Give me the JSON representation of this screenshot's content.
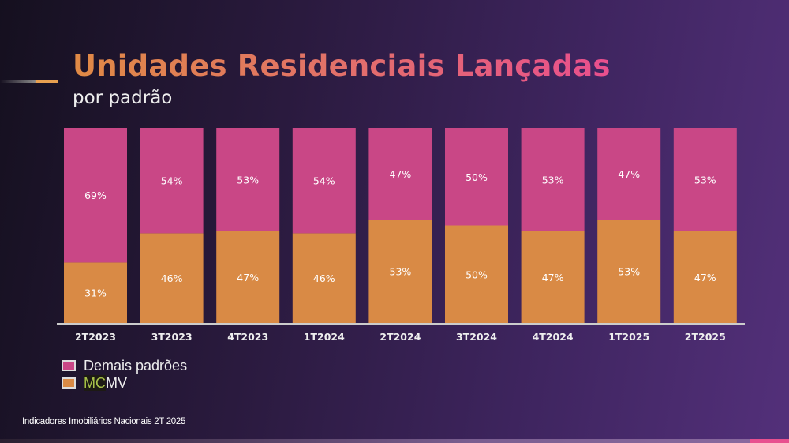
{
  "title": "Unidades Residenciais Lançadas",
  "subtitle": "por padrão",
  "footer": "Indicadores Imobiliários Nacionais  2T 2025",
  "chart_data": {
    "type": "bar",
    "stacked": true,
    "unit": "%",
    "categories": [
      "2T2023",
      "3T2023",
      "4T2023",
      "1T2024",
      "2T2024",
      "3T2024",
      "4T2024",
      "1T2025",
      "2T2025"
    ],
    "series": [
      {
        "name": "MCMV",
        "color": "#d98a45",
        "values": [
          31,
          46,
          47,
          46,
          53,
          50,
          47,
          53,
          47
        ]
      },
      {
        "name": "Demais padrões",
        "color": "#c94786",
        "values": [
          69,
          54,
          53,
          54,
          47,
          50,
          53,
          47,
          53
        ]
      }
    ],
    "ylim": [
      0,
      100
    ],
    "grid": false,
    "legend_position": "bottom-left"
  },
  "legend": {
    "demais": "Demais padrões",
    "mc": "MC",
    "mv": "MV"
  }
}
